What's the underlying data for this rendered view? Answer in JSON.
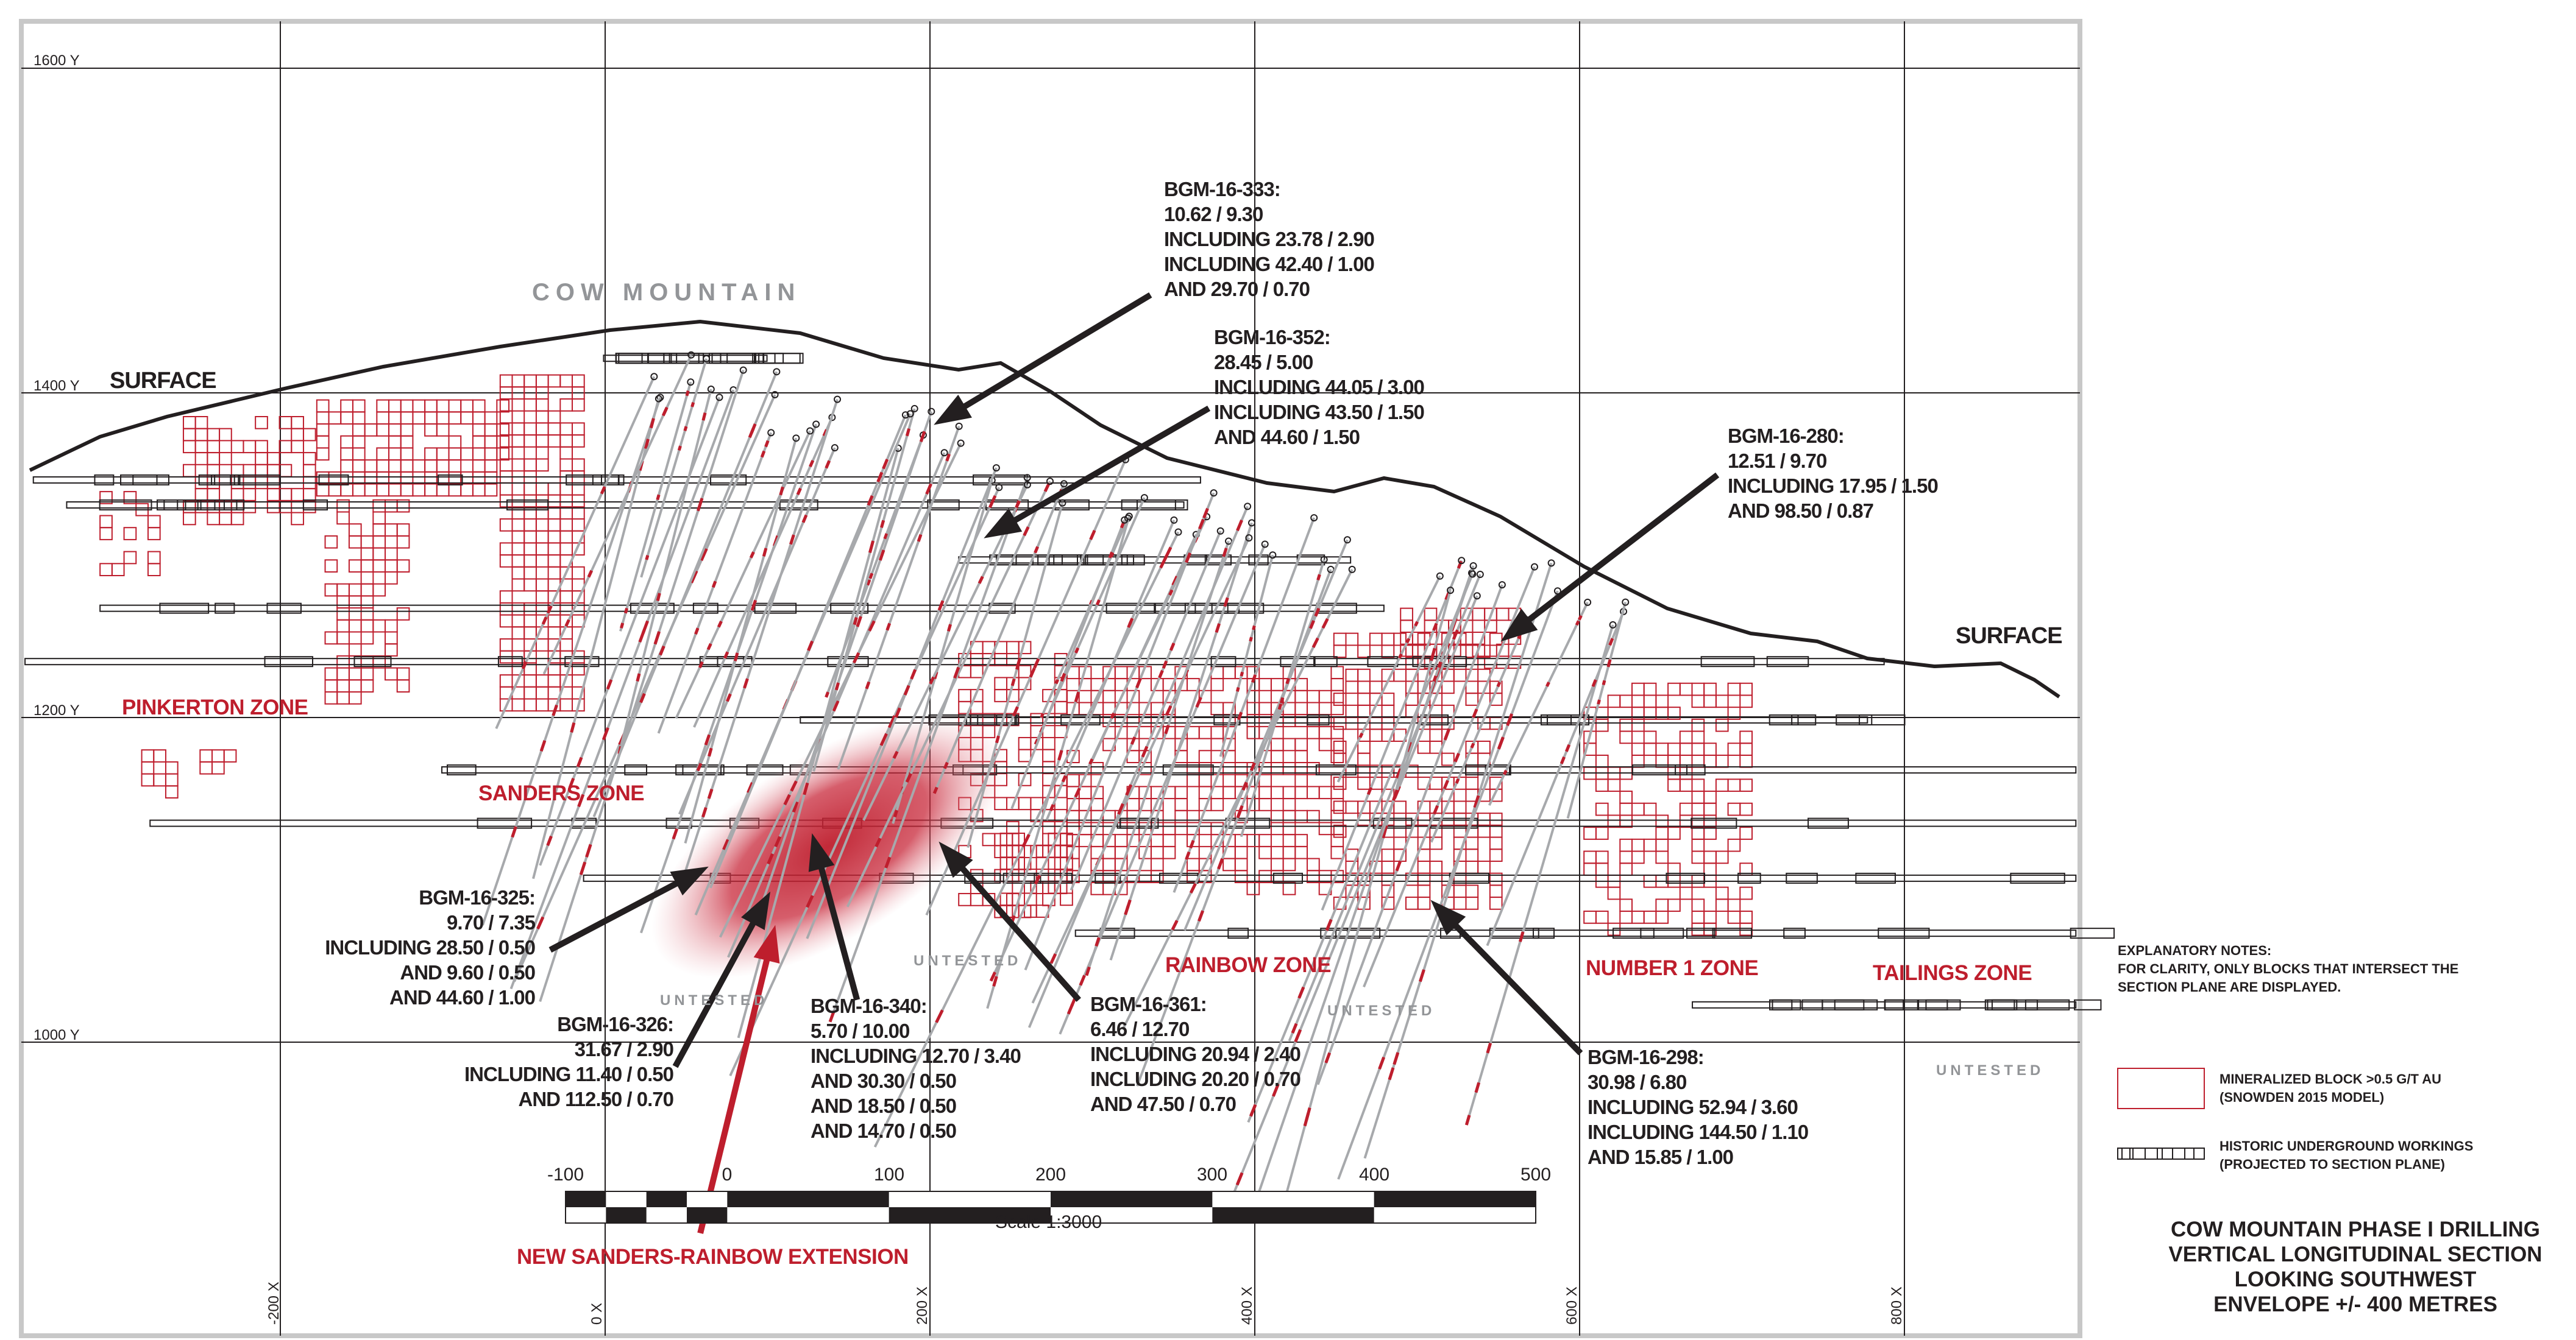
{
  "colors": {
    "accent_red": "#be1e2d",
    "grid": "#231f20",
    "frame": "#c8c8c8",
    "untested_gray": "#939598"
  },
  "y_axis_labels": [
    "1600 Y",
    "1400 Y",
    "1200 Y",
    "1000 Y"
  ],
  "x_axis_labels": [
    "-200 X",
    "0 X",
    "200 X",
    "400 X",
    "600 X",
    "800 X"
  ],
  "surface_labels": [
    "SURFACE",
    "SURFACE"
  ],
  "mountain_label": "COW MOUNTAIN",
  "zones": [
    "PINKERTON ZONE",
    "SANDERS ZONE",
    "RAINBOW ZONE",
    "NUMBER 1 ZONE",
    "TAILINGS ZONE"
  ],
  "untested_labels": [
    "UNTESTED",
    "UNTESTED",
    "UNTESTED",
    "UNTESTED"
  ],
  "callouts": {
    "bgm_16_333": [
      "BGM-16-333:",
      "10.62 / 9.30",
      "INCLUDING 23.78 / 2.90",
      "INCLUDING 42.40 / 1.00",
      "AND 29.70 / 0.70"
    ],
    "bgm_16_352": [
      "BGM-16-352:",
      "28.45 / 5.00",
      "INCLUDING 44.05 / 3.00",
      "INCLUDING 43.50 / 1.50",
      "AND 44.60 / 1.50"
    ],
    "bgm_16_280": [
      "BGM-16-280:",
      "12.51 / 9.70",
      "INCLUDING 17.95 / 1.50",
      "AND 98.50 / 0.87"
    ],
    "bgm_16_325": [
      "BGM-16-325:",
      "9.70 / 7.35",
      "INCLUDING 28.50 / 0.50",
      "AND 9.60 / 0.50",
      "AND 44.60 / 1.00"
    ],
    "bgm_16_326": [
      "BGM-16-326:",
      "31.67 / 2.90",
      "INCLUDING 11.40 /  0.50",
      "AND 112.50 / 0.70"
    ],
    "bgm_16_340": [
      "BGM-16-340:",
      "5.70 / 10.00",
      "INCLUDING 12.70 / 3.40",
      "AND 30.30 / 0.50",
      "AND 18.50 / 0.50",
      "AND 14.70 / 0.50"
    ],
    "bgm_16_361": [
      "BGM-16-361:",
      "6.46 / 12.70",
      "INCLUDING 20.94 / 2.40",
      "INCLUDING 20.20 / 0.70",
      "AND 47.50 / 0.70"
    ],
    "bgm_16_298": [
      "BGM-16-298:",
      "30.98 / 6.80",
      "INCLUDING 52.94 / 3.60",
      "INCLUDING 144.50 / 1.10",
      "AND 15.85 / 1.00"
    ]
  },
  "scale_bar": {
    "ticks": [
      "-100",
      "0",
      "100",
      "200",
      "300",
      "400",
      "500"
    ],
    "label": "Scale 1:3000"
  },
  "extension_label": "NEW SANDERS-RAINBOW EXTENSION",
  "notes": [
    "EXPLANATORY NOTES:",
    "FOR CLARITY, ONLY BLOCKS THAT INTERSECT THE",
    "SECTION PLANE ARE DISPLAYED."
  ],
  "legend": {
    "mineralized": [
      "MINERALIZED BLOCK >0.5 G/T AU",
      "(SNOWDEN 2015 MODEL)"
    ],
    "workings": [
      "HISTORIC UNDERGROUND WORKINGS",
      "(PROJECTED TO SECTION PLANE)"
    ]
  },
  "title": [
    "COW MOUNTAIN PHASE I DRILLING",
    "VERTICAL LONGITUDINAL SECTION",
    "LOOKING SOUTHWEST",
    "ENVELOPE +/- 400 METRES"
  ]
}
